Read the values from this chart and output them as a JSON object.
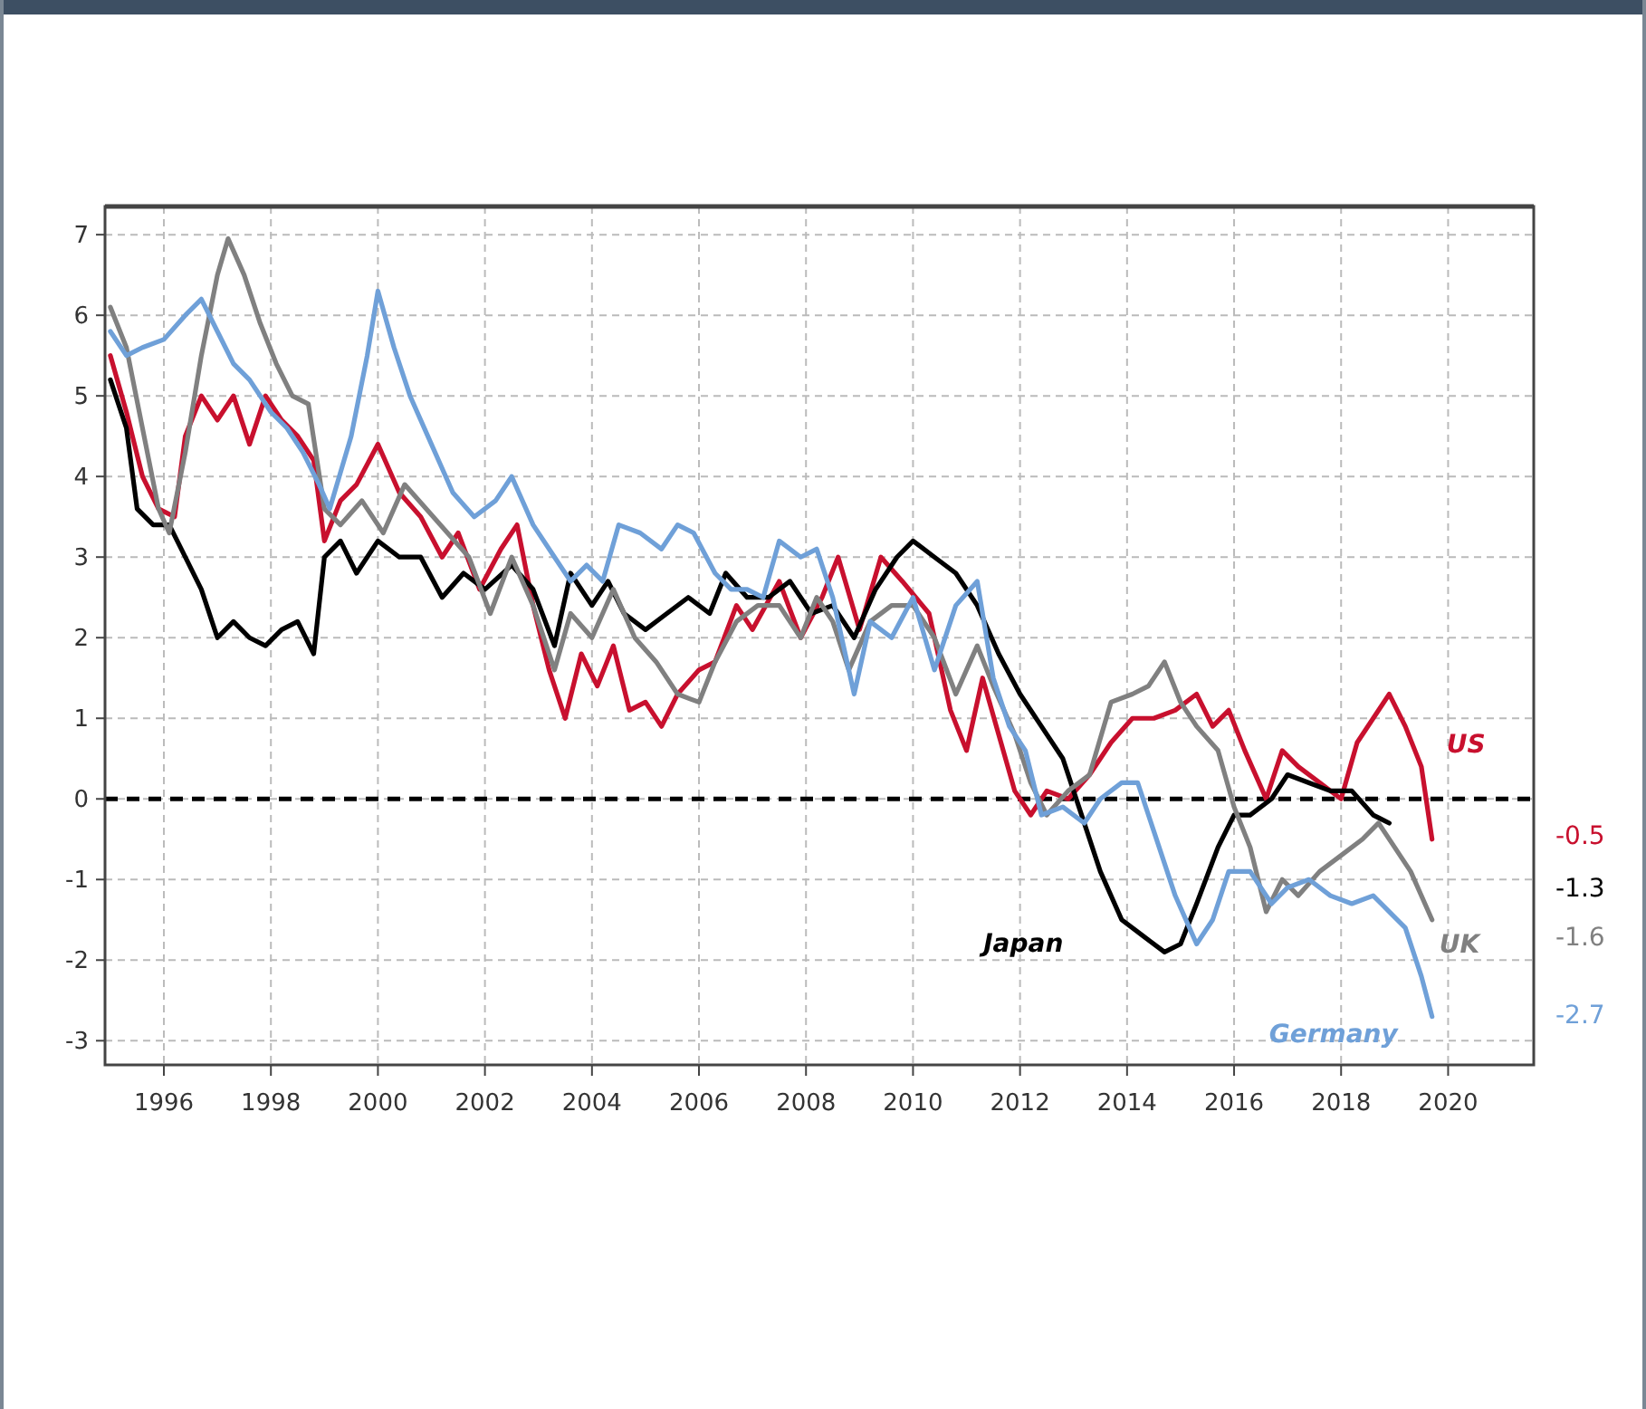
{
  "chart_data": {
    "type": "line",
    "xlim": [
      1994.9,
      2021.6
    ],
    "ylim": [
      -3.3,
      7.35
    ],
    "xticks": [
      1996,
      1998,
      2000,
      2002,
      2004,
      2006,
      2008,
      2010,
      2012,
      2014,
      2016,
      2018,
      2020
    ],
    "yticks": [
      -3,
      -2,
      -1,
      0,
      1,
      2,
      3,
      4,
      5,
      6,
      7
    ],
    "grid": true,
    "marker": "none",
    "line_style": "solid",
    "ref_lines": [
      {
        "axis": "y",
        "value": 0,
        "color": "#000000",
        "line_style": "dashed"
      }
    ],
    "annotations": [
      "-0.5",
      "-1.3",
      "-1.6",
      "-2.7"
    ],
    "series": [
      {
        "name": "US",
        "color": "#c8102e",
        "x": [
          1995.0,
          1995.3,
          1995.6,
          1995.9,
          1996.2,
          1996.4,
          1996.7,
          1997.0,
          1997.3,
          1997.6,
          1997.9,
          1998.2,
          1998.5,
          1998.8,
          1999.0,
          1999.3,
          1999.6,
          2000.0,
          2000.4,
          2000.8,
          2001.2,
          2001.5,
          2001.9,
          2002.3,
          2002.6,
          2002.9,
          2003.2,
          2003.5,
          2003.8,
          2004.1,
          2004.4,
          2004.7,
          2005.0,
          2005.3,
          2005.6,
          2006.0,
          2006.3,
          2006.7,
          2007.0,
          2007.5,
          2007.9,
          2008.3,
          2008.6,
          2009.0,
          2009.4,
          2009.8,
          2010.3,
          2010.7,
          2011.0,
          2011.3,
          2011.6,
          2011.9,
          2012.2,
          2012.5,
          2012.9,
          2013.3,
          2013.7,
          2014.1,
          2014.5,
          2014.9,
          2015.3,
          2015.6,
          2015.9,
          2016.2,
          2016.6,
          2016.9,
          2017.2,
          2017.6,
          2018.0,
          2018.3,
          2018.6,
          2018.9,
          2019.2,
          2019.5,
          2019.7
        ],
        "values": [
          5.5,
          4.8,
          4.0,
          3.6,
          3.5,
          4.5,
          5.0,
          4.7,
          5.0,
          4.4,
          5.0,
          4.7,
          4.5,
          4.2,
          3.2,
          3.7,
          3.9,
          4.4,
          3.8,
          3.5,
          3.0,
          3.3,
          2.6,
          3.1,
          3.4,
          2.4,
          1.6,
          1.0,
          1.8,
          1.4,
          1.9,
          1.1,
          1.2,
          0.9,
          1.3,
          1.6,
          1.7,
          2.4,
          2.1,
          2.7,
          2.0,
          2.5,
          3.0,
          2.1,
          3.0,
          2.7,
          2.3,
          1.1,
          0.6,
          1.5,
          0.8,
          0.1,
          -0.2,
          0.1,
          0.0,
          0.3,
          0.7,
          1.0,
          1.0,
          1.1,
          1.3,
          0.9,
          1.1,
          0.6,
          0.0,
          0.6,
          0.4,
          0.2,
          0.0,
          0.7,
          1.0,
          1.3,
          0.9,
          0.4,
          -0.5
        ]
      },
      {
        "name": "Japan",
        "color": "#000000",
        "x": [
          1995.0,
          1995.3,
          1995.5,
          1995.8,
          1996.1,
          1996.4,
          1996.7,
          1997.0,
          1997.3,
          1997.6,
          1997.9,
          1998.2,
          1998.5,
          1998.8,
          1999.0,
          1999.3,
          1999.6,
          2000.0,
          2000.4,
          2000.8,
          2001.2,
          2001.6,
          2002.0,
          2002.5,
          2002.9,
          2003.3,
          2003.6,
          2004.0,
          2004.3,
          2004.6,
          2005.0,
          2005.4,
          2005.8,
          2006.2,
          2006.5,
          2006.9,
          2007.3,
          2007.7,
          2008.1,
          2008.5,
          2008.9,
          2009.3,
          2009.7,
          2010.0,
          2010.4,
          2010.8,
          2011.2,
          2011.6,
          2012.0,
          2012.4,
          2012.8,
          2013.1,
          2013.5,
          2013.9,
          2014.3,
          2014.7,
          2015.0,
          2015.3,
          2015.7,
          2016.0,
          2016.3,
          2016.7,
          2017.0,
          2017.4,
          2017.8,
          2018.2,
          2018.6,
          2018.9
        ],
        "values": [
          5.2,
          4.6,
          3.6,
          3.4,
          3.4,
          3.0,
          2.6,
          2.0,
          2.2,
          2.0,
          1.9,
          2.1,
          2.2,
          1.8,
          3.0,
          3.2,
          2.8,
          3.2,
          3.0,
          3.0,
          2.5,
          2.8,
          2.6,
          2.9,
          2.6,
          1.9,
          2.8,
          2.4,
          2.7,
          2.3,
          2.1,
          2.3,
          2.5,
          2.3,
          2.8,
          2.5,
          2.5,
          2.7,
          2.3,
          2.4,
          2.0,
          2.6,
          3.0,
          3.2,
          3.0,
          2.8,
          2.4,
          1.8,
          1.3,
          0.9,
          0.5,
          -0.1,
          -0.9,
          -1.5,
          -1.7,
          -1.9,
          -1.8,
          -1.3,
          -0.6,
          -0.2,
          -0.2,
          0.0,
          0.3,
          0.2,
          0.1,
          0.1,
          -0.2,
          -0.3
        ]
      },
      {
        "name": "UK",
        "color": "#808080",
        "x": [
          1995.0,
          1995.3,
          1995.6,
          1995.9,
          1996.1,
          1996.4,
          1996.7,
          1997.0,
          1997.2,
          1997.5,
          1997.8,
          1998.1,
          1998.4,
          1998.7,
          1999.0,
          1999.3,
          1999.7,
          2000.1,
          2000.5,
          2000.9,
          2001.3,
          2001.7,
          2002.1,
          2002.5,
          2002.9,
          2003.3,
          2003.6,
          2004.0,
          2004.4,
          2004.8,
          2005.2,
          2005.6,
          2006.0,
          2006.3,
          2006.7,
          2007.1,
          2007.5,
          2007.9,
          2008.2,
          2008.5,
          2008.8,
          2009.2,
          2009.6,
          2010.0,
          2010.4,
          2010.8,
          2011.2,
          2011.5,
          2011.9,
          2012.2,
          2012.5,
          2012.9,
          2013.3,
          2013.7,
          2014.1,
          2014.4,
          2014.7,
          2015.0,
          2015.3,
          2015.7,
          2016.0,
          2016.3,
          2016.6,
          2016.9,
          2017.2,
          2017.6,
          2018.0,
          2018.4,
          2018.7,
          2019.0,
          2019.3,
          2019.7
        ],
        "values": [
          6.1,
          5.6,
          4.6,
          3.6,
          3.3,
          4.3,
          5.5,
          6.5,
          6.95,
          6.5,
          5.9,
          5.4,
          5.0,
          4.9,
          3.6,
          3.4,
          3.7,
          3.3,
          3.9,
          3.6,
          3.3,
          3.0,
          2.3,
          3.0,
          2.4,
          1.6,
          2.3,
          2.0,
          2.6,
          2.0,
          1.7,
          1.3,
          1.2,
          1.7,
          2.2,
          2.4,
          2.4,
          2.0,
          2.5,
          2.2,
          1.6,
          2.2,
          2.4,
          2.4,
          2.0,
          1.3,
          1.9,
          1.4,
          0.8,
          0.2,
          -0.2,
          0.1,
          0.3,
          1.2,
          1.3,
          1.4,
          1.7,
          1.2,
          0.9,
          0.6,
          -0.1,
          -0.6,
          -1.4,
          -1.0,
          -1.2,
          -0.9,
          -0.7,
          -0.5,
          -0.3,
          -0.6,
          -0.9,
          -1.5
        ]
      },
      {
        "name": "Germany",
        "color": "#6fa0d8",
        "x": [
          1995.0,
          1995.3,
          1995.6,
          1996.0,
          1996.4,
          1996.7,
          1997.0,
          1997.3,
          1997.6,
          1998.0,
          1998.3,
          1998.6,
          1998.9,
          1999.1,
          1999.5,
          1999.8,
          2000.0,
          2000.3,
          2000.6,
          2001.0,
          2001.4,
          2001.8,
          2002.2,
          2002.5,
          2002.9,
          2003.3,
          2003.6,
          2003.9,
          2004.2,
          2004.5,
          2004.9,
          2005.3,
          2005.6,
          2005.9,
          2006.3,
          2006.6,
          2006.9,
          2007.2,
          2007.5,
          2007.9,
          2008.2,
          2008.5,
          2008.9,
          2009.2,
          2009.6,
          2010.0,
          2010.4,
          2010.8,
          2011.2,
          2011.5,
          2011.8,
          2012.1,
          2012.4,
          2012.8,
          2013.2,
          2013.5,
          2013.9,
          2014.2,
          2014.5,
          2014.9,
          2015.3,
          2015.6,
          2015.9,
          2016.3,
          2016.7,
          2017.0,
          2017.4,
          2017.8,
          2018.2,
          2018.6,
          2018.9,
          2019.2,
          2019.5,
          2019.7
        ],
        "values": [
          5.8,
          5.5,
          5.6,
          5.7,
          6.0,
          6.2,
          5.8,
          5.4,
          5.2,
          4.8,
          4.6,
          4.3,
          3.9,
          3.6,
          4.5,
          5.5,
          6.3,
          5.6,
          5.0,
          4.4,
          3.8,
          3.5,
          3.7,
          4.0,
          3.4,
          3.0,
          2.7,
          2.9,
          2.7,
          3.4,
          3.3,
          3.1,
          3.4,
          3.3,
          2.8,
          2.6,
          2.6,
          2.5,
          3.2,
          3.0,
          3.1,
          2.5,
          1.3,
          2.2,
          2.0,
          2.5,
          1.6,
          2.4,
          2.7,
          1.5,
          0.9,
          0.6,
          -0.2,
          -0.1,
          -0.3,
          0.0,
          0.2,
          0.2,
          -0.4,
          -1.2,
          -1.8,
          -1.5,
          -0.9,
          -0.9,
          -1.3,
          -1.1,
          -1.0,
          -1.2,
          -1.3,
          -1.2,
          -1.4,
          -1.6,
          -2.2,
          -2.7
        ]
      }
    ]
  }
}
